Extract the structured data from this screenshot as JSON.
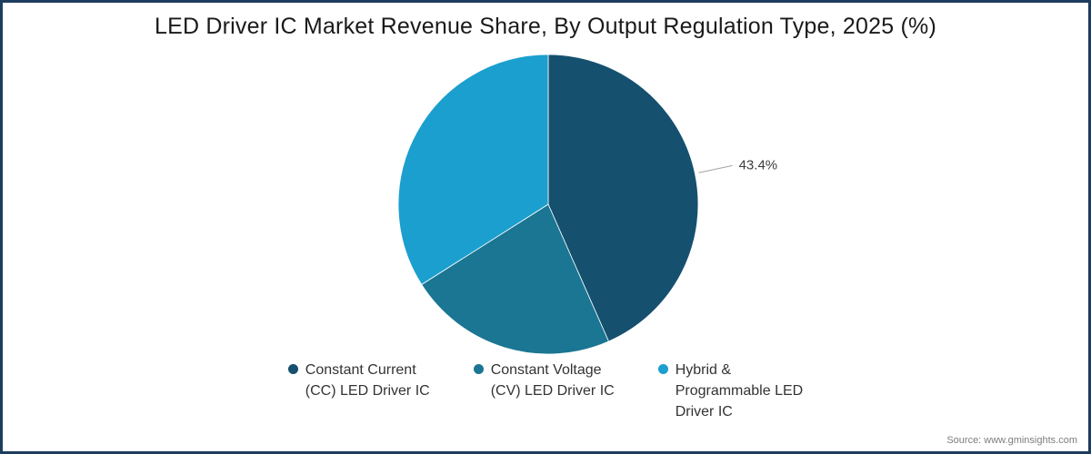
{
  "title": "LED Driver IC Market Revenue Share, By Output Regulation Type, 2025 (%)",
  "source": "Source: www.gminsights.com",
  "chart_data": {
    "type": "pie",
    "title": "LED Driver IC Market Revenue Share, By Output Regulation Type, 2025 (%)",
    "start_angle_deg": 0,
    "direction": "clockwise",
    "slices": [
      {
        "label": "Constant Current (CC) LED Driver IC",
        "value": 43.4,
        "color": "#15506f",
        "data_label": "43.4%"
      },
      {
        "label": "Constant Voltage (CV) LED Driver IC",
        "value": 22.6,
        "color": "#1a7693",
        "data_label": ""
      },
      {
        "label": "Hybrid & Programmable LED Driver IC",
        "value": 34.0,
        "color": "#1b9fce",
        "data_label": ""
      }
    ],
    "legend_position": "bottom",
    "note": "Only the 43.4% slice carries a visible data label; other values estimated from arc angles."
  },
  "callout": {
    "text": "43.4%"
  },
  "legend": {
    "items": [
      {
        "label": "Constant Current\n(CC) LED Driver IC",
        "color": "#15506f"
      },
      {
        "label": "Constant Voltage\n(CV) LED Driver IC",
        "color": "#1a7693"
      },
      {
        "label": "Hybrid &\nProgrammable LED\nDriver IC",
        "color": "#1b9fce"
      }
    ]
  }
}
